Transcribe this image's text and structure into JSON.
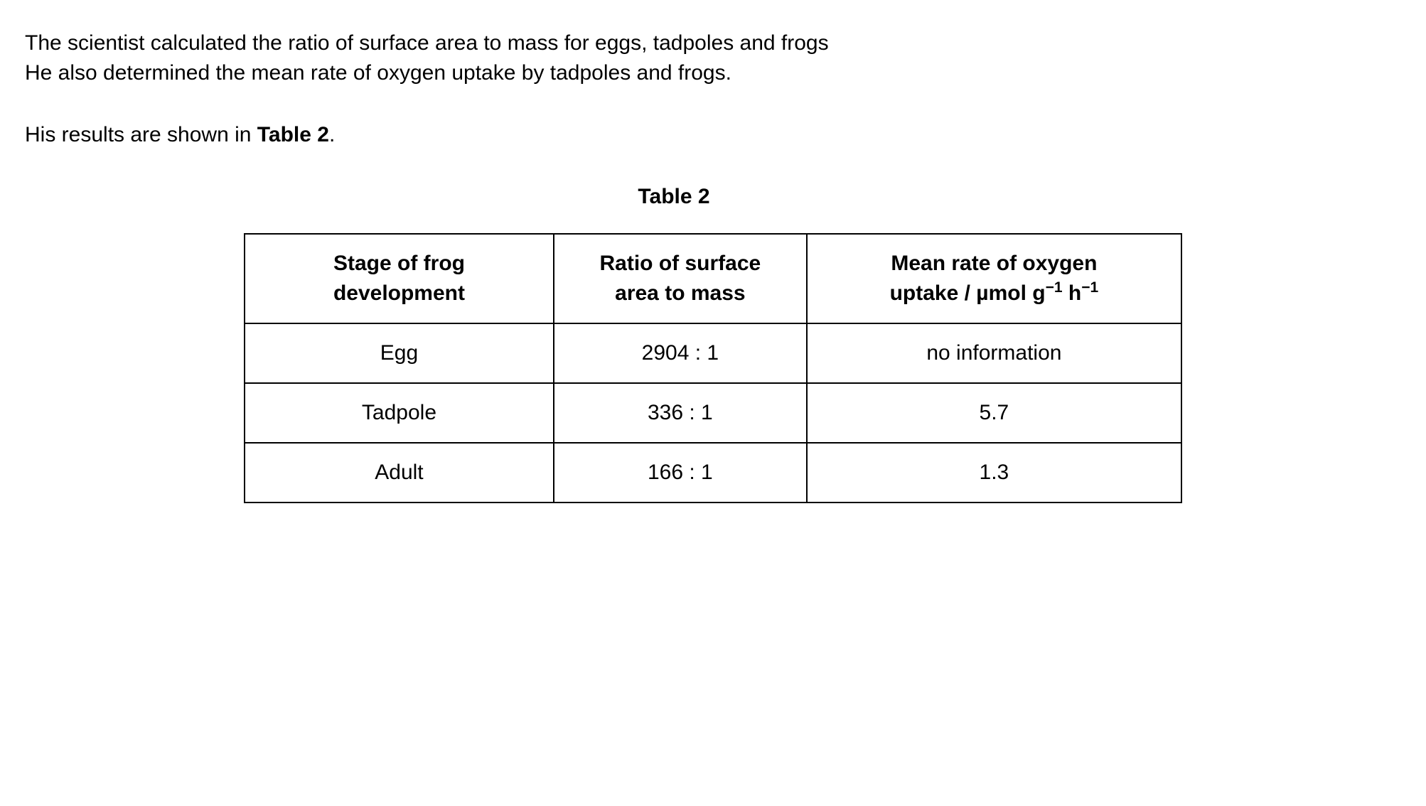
{
  "intro": {
    "line1": "The scientist calculated the ratio of surface area to mass for eggs, tadpoles and frogs",
    "line2": "He also determined the mean rate of oxygen uptake by tadpoles and frogs.",
    "line3_prefix": "His results are shown in ",
    "line3_bold": "Table 2",
    "line3_suffix": "."
  },
  "table": {
    "caption": "Table 2",
    "columns": {
      "col1_line1": "Stage of frog",
      "col1_line2": "development",
      "col2_line1": "Ratio of surface",
      "col2_line2": "area to mass",
      "col3_line1": "Mean rate of oxygen",
      "col3_prefix": "uptake / µmol g",
      "col3_sup1": "−1",
      "col3_mid": " h",
      "col3_sup2": "−1"
    },
    "rows": [
      {
        "stage": "Egg",
        "ratio": "2904 : 1",
        "uptake": "no information"
      },
      {
        "stage": "Tadpole",
        "ratio": "336 : 1",
        "uptake": "5.7"
      },
      {
        "stage": "Adult",
        "ratio": "166 : 1",
        "uptake": "1.3"
      }
    ]
  },
  "style": {
    "background_color": "#ffffff",
    "text_color": "#000000",
    "border_color": "#000000",
    "body_fontsize": 30,
    "header_fontsize": 30,
    "cell_fontsize": 30
  }
}
